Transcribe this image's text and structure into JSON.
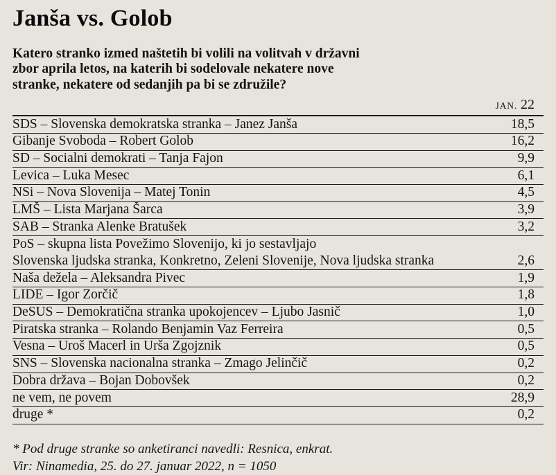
{
  "header": {
    "title": "Janša vs. Golob",
    "question_lines": [
      "Katero stranko izmed naštetih bi volili na volitvah v državni",
      "zbor aprila letos, na katerih bi sodelovale nekatere nove",
      "stranke, nekatere od sedanjih pa bi se združile?"
    ]
  },
  "table": {
    "column_header": "JAN. 22",
    "column_header_month": "JAN.",
    "column_header_year": "22"
  },
  "footnotes": [
    "* Pod druge stranke so anketiranci navedli: Resnica, enkrat.",
    "Vir: Ninamedia, 25. do 27. januar 2022, n = 1050"
  ],
  "colors": {
    "background": "#e7e4de",
    "text": "#161514",
    "rule": "#1b1a19"
  },
  "chart_data": {
    "type": "table",
    "title": "Janša vs. Golob",
    "subtitle": "Katero stranko izmed naštetih bi volili na volitvah v državni zbor aprila letos, na katerih bi sodelovale nekatere nove stranke, nekatere od sedanjih pa bi se združile?",
    "column_header": "JAN. 22",
    "value_unit": "percent",
    "rows": [
      {
        "label": "SDS – Slovenska demokratska stranka – Janez Janša",
        "value": 18.5,
        "display": "18,5"
      },
      {
        "label": "Gibanje Svoboda – Robert Golob",
        "value": 16.2,
        "display": "16,2"
      },
      {
        "label": "SD – Socialni demokrati – Tanja Fajon",
        "value": 9.9,
        "display": "9,9"
      },
      {
        "label": "Levica – Luka Mesec",
        "value": 6.1,
        "display": "6,1"
      },
      {
        "label": "NSi – Nova Slovenija – Matej Tonin",
        "value": 4.5,
        "display": "4,5"
      },
      {
        "label": "LMŠ – Lista Marjana Šarca",
        "value": 3.9,
        "display": "3,9"
      },
      {
        "label": "SAB – Stranka Alenke Bratušek",
        "value": 3.2,
        "display": "3,2"
      },
      {
        "label": "PoS – skupna lista Povežimo Slovenijo, ki jo sestavljajo Slovenska ljudska stranka, Konkretno, Zeleni Slovenije, Nova ljudska stranka",
        "label_lines": [
          "PoS – skupna lista Povežimo Slovenijo, ki jo sestavljajo",
          "Slovenska ljudska stranka, Konkretno, Zeleni Slovenije, Nova ljudska stranka"
        ],
        "value": 2.6,
        "display": "2,6"
      },
      {
        "label": "Naša dežela – Aleksandra Pivec",
        "value": 1.9,
        "display": "1,9"
      },
      {
        "label": "LIDE – Igor Zorčič",
        "value": 1.8,
        "display": "1,8"
      },
      {
        "label": "DeSUS – Demokratična stranka upokojencev – Ljubo Jasnič",
        "value": 1.0,
        "display": "1,0"
      },
      {
        "label": "Piratska stranka – Rolando Benjamin Vaz Ferreira",
        "value": 0.5,
        "display": "0,5"
      },
      {
        "label": "Vesna – Uroš Macerl in Urša Zgojznik",
        "value": 0.5,
        "display": "0,5"
      },
      {
        "label": "SNS – Slovenska nacionalna stranka – Zmago Jelinčič",
        "value": 0.2,
        "display": "0,2"
      },
      {
        "label": "Dobra država – Bojan Dobovšek",
        "value": 0.2,
        "display": "0,2"
      },
      {
        "label": "ne vem, ne povem",
        "value": 28.9,
        "display": "28,9"
      },
      {
        "label": "druge *",
        "value": 0.2,
        "display": "0,2"
      }
    ],
    "footnotes": [
      "* Pod druge stranke so anketiranci navedli: Resnica, enkrat.",
      "Vir: Ninamedia, 25. do 27. januar 2022, n = 1050"
    ],
    "layout": {
      "legend": "none",
      "grid": "row-rules-only",
      "value_alignment": "right"
    }
  }
}
